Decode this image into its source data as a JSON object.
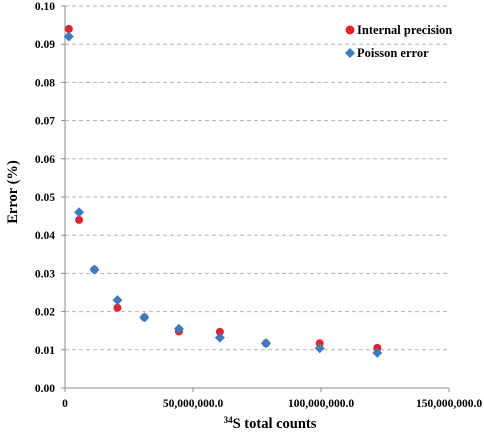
{
  "chart_data": {
    "type": "scatter",
    "title": "",
    "xlabel_super": "34",
    "xlabel_main": "S total counts",
    "ylabel": "Error (%)",
    "xlim": [
      0,
      150000000
    ],
    "ylim": [
      0,
      0.1
    ],
    "x_ticks": [
      {
        "value": 0,
        "label": "0"
      },
      {
        "value": 50000000,
        "label": "50,000,000.0"
      },
      {
        "value": 100000000,
        "label": "100,000,000.0"
      },
      {
        "value": 150000000,
        "label": "150,000,000.0"
      }
    ],
    "y_ticks": [
      {
        "value": 0,
        "label": "0.00"
      },
      {
        "value": 0.01,
        "label": "0.01"
      },
      {
        "value": 0.02,
        "label": "0.02"
      },
      {
        "value": 0.03,
        "label": "0.03"
      },
      {
        "value": 0.04,
        "label": "0.04"
      },
      {
        "value": 0.05,
        "label": "0.05"
      },
      {
        "value": 0.06,
        "label": "0.06"
      },
      {
        "value": 0.07,
        "label": "0.07"
      },
      {
        "value": 0.08,
        "label": "0.08"
      },
      {
        "value": 0.09,
        "label": "0.09"
      },
      {
        "value": 0.1,
        "label": "0.10"
      }
    ],
    "grid": "horizontal dashed",
    "legend_position": "top-right",
    "series": [
      {
        "name": "Internal precision",
        "marker": "circle",
        "color": "#e3232b",
        "points": [
          {
            "x": 1500000,
            "y": 0.094
          },
          {
            "x": 5500000,
            "y": 0.044
          },
          {
            "x": 11500000,
            "y": 0.031
          },
          {
            "x": 20500000,
            "y": 0.021
          },
          {
            "x": 31000000,
            "y": 0.0185
          },
          {
            "x": 44500000,
            "y": 0.0148
          },
          {
            "x": 60500000,
            "y": 0.0147
          },
          {
            "x": 78500000,
            "y": 0.0117
          },
          {
            "x": 99500000,
            "y": 0.0117
          },
          {
            "x": 122000000,
            "y": 0.0105
          }
        ]
      },
      {
        "name": "Poisson error",
        "marker": "diamond",
        "color": "#3b7cc2",
        "points": [
          {
            "x": 1500000,
            "y": 0.092
          },
          {
            "x": 5500000,
            "y": 0.046
          },
          {
            "x": 11500000,
            "y": 0.031
          },
          {
            "x": 20500000,
            "y": 0.023
          },
          {
            "x": 31000000,
            "y": 0.0185
          },
          {
            "x": 44500000,
            "y": 0.0155
          },
          {
            "x": 60500000,
            "y": 0.0132
          },
          {
            "x": 78500000,
            "y": 0.0117
          },
          {
            "x": 99500000,
            "y": 0.0104
          },
          {
            "x": 122000000,
            "y": 0.0092
          }
        ]
      }
    ]
  }
}
